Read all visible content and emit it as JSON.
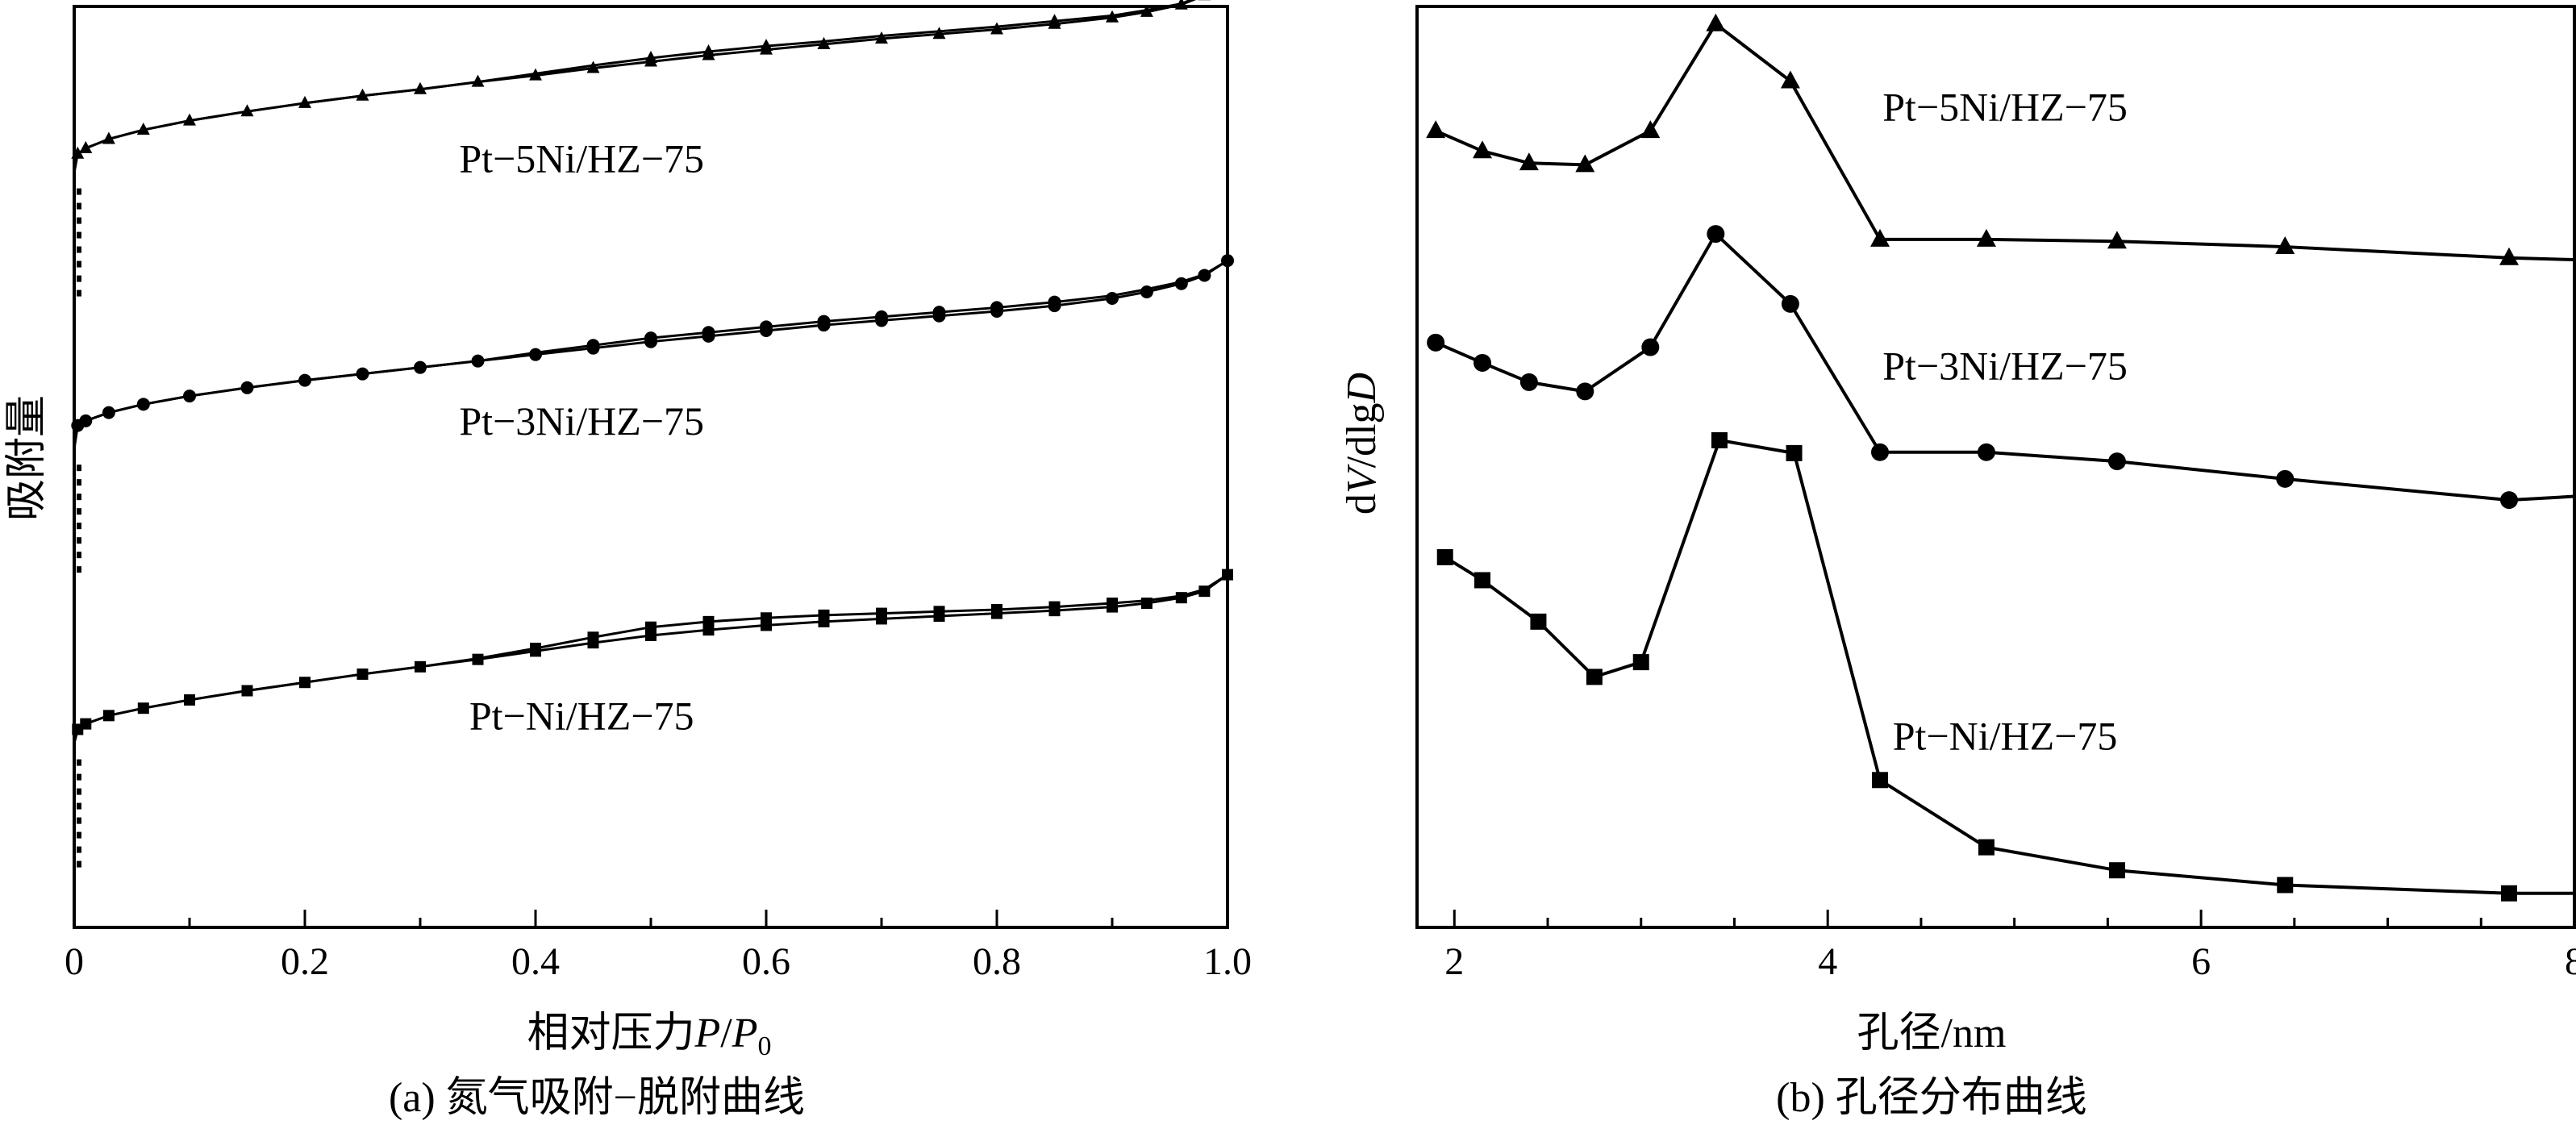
{
  "chart_data": [
    {
      "type": "line",
      "title": "",
      "caption": "(a) 氮气吸附−脱附曲线",
      "xlabel_prefix": "相对压力",
      "xlabel_var": "P",
      "xlabel_slash": "/",
      "xlabel_var2": "P",
      "xlabel_sub": "0",
      "ylabel": "吸附量",
      "xlim": [
        0,
        1.0
      ],
      "ylim": [
        0,
        100
      ],
      "xticks": [
        0,
        0.2,
        0.4,
        0.6,
        0.8,
        1.0
      ],
      "xtick_labels": [
        "0",
        "0.2",
        "0.4",
        "0.6",
        "0.8",
        "1.0"
      ],
      "series": [
        {
          "name": "Pt−5Ni/HZ−75",
          "marker": "triangle",
          "x": [
            0.0,
            0.003,
            0.01,
            0.03,
            0.06,
            0.1,
            0.15,
            0.2,
            0.25,
            0.3,
            0.35,
            0.4,
            0.45,
            0.5,
            0.55,
            0.6,
            0.65,
            0.7,
            0.75,
            0.8,
            0.85,
            0.9,
            0.93,
            0.96,
            0.98,
            1.0
          ],
          "y_adsorption": [
            82,
            84.0,
            84.6,
            85.6,
            86.6,
            87.6,
            88.6,
            89.5,
            90.3,
            91.0,
            91.8,
            92.5,
            93.3,
            94.0,
            94.7,
            95.3,
            95.9,
            96.5,
            97.0,
            97.5,
            98.1,
            98.8,
            99.4,
            100.2,
            101.2,
            102.6
          ],
          "y_desorption": [
            82,
            84.0,
            84.6,
            85.6,
            86.6,
            87.6,
            88.6,
            89.5,
            90.3,
            91.0,
            91.8,
            92.7,
            93.6,
            94.4,
            95.1,
            95.7,
            96.2,
            96.8,
            97.3,
            97.8,
            98.4,
            99.0,
            99.6,
            100.3,
            101.3,
            102.6
          ],
          "label_x": 0.44,
          "label_y": 82.0
        },
        {
          "name": "Pt−3Ni/HZ−75",
          "marker": "circle",
          "x": [
            0.0,
            0.003,
            0.01,
            0.03,
            0.06,
            0.1,
            0.15,
            0.2,
            0.25,
            0.3,
            0.35,
            0.4,
            0.45,
            0.5,
            0.55,
            0.6,
            0.65,
            0.7,
            0.75,
            0.8,
            0.85,
            0.9,
            0.93,
            0.96,
            0.98,
            1.0
          ],
          "y_adsorption": [
            52,
            54.5,
            55.0,
            55.9,
            56.8,
            57.7,
            58.6,
            59.4,
            60.1,
            60.8,
            61.5,
            62.2,
            62.9,
            63.6,
            64.2,
            64.8,
            65.4,
            65.9,
            66.4,
            66.9,
            67.5,
            68.3,
            69.0,
            69.9,
            70.8,
            72.4
          ],
          "y_desorption": [
            52,
            54.5,
            55.0,
            55.9,
            56.8,
            57.7,
            58.6,
            59.4,
            60.1,
            60.8,
            61.5,
            62.4,
            63.2,
            64.0,
            64.6,
            65.2,
            65.8,
            66.3,
            66.8,
            67.3,
            67.9,
            68.6,
            69.3,
            70.1,
            70.9,
            72.4
          ],
          "label_x": 0.44,
          "label_y": 53.5
        },
        {
          "name": "Pt−Ni/HZ−75",
          "marker": "square",
          "x": [
            0.0,
            0.003,
            0.01,
            0.03,
            0.06,
            0.1,
            0.15,
            0.2,
            0.25,
            0.3,
            0.35,
            0.4,
            0.45,
            0.5,
            0.55,
            0.6,
            0.65,
            0.7,
            0.75,
            0.8,
            0.85,
            0.9,
            0.93,
            0.96,
            0.98,
            1.0
          ],
          "y_adsorption": [
            20,
            21.5,
            22.1,
            23.0,
            23.8,
            24.7,
            25.7,
            26.6,
            27.5,
            28.3,
            29.1,
            30.0,
            30.9,
            31.7,
            32.3,
            32.8,
            33.2,
            33.5,
            33.8,
            34.1,
            34.4,
            34.8,
            35.2,
            35.8,
            36.5,
            38.3
          ],
          "y_desorption": [
            20,
            21.5,
            22.1,
            23.0,
            23.8,
            24.7,
            25.7,
            26.6,
            27.5,
            28.3,
            29.2,
            30.3,
            31.5,
            32.6,
            33.2,
            33.6,
            33.9,
            34.1,
            34.3,
            34.5,
            34.8,
            35.2,
            35.5,
            36.0,
            36.7,
            38.3
          ],
          "label_x": 0.44,
          "label_y": 21.5
        }
      ]
    },
    {
      "type": "line",
      "title": "",
      "caption": "(b) 孔径分布曲线",
      "xlabel": "孔径/nm",
      "ylabel_pre": "d",
      "ylabel_v": "V",
      "ylabel_mid": "/dlg",
      "ylabel_d": "D",
      "xlim": [
        1.8,
        8.0
      ],
      "ylim": [
        0,
        100
      ],
      "xticks": [
        2,
        4,
        6,
        8
      ],
      "xtick_labels": [
        "2",
        "4",
        "6",
        "8"
      ],
      "minor_xticks": [
        2.5,
        3,
        3.5,
        4.5,
        5,
        5.5,
        6.5,
        7,
        7.5
      ],
      "series": [
        {
          "name": "Pt−5Ni/HZ−75",
          "marker": "triangle",
          "x": [
            1.9,
            2.15,
            2.4,
            2.7,
            3.05,
            3.4,
            3.8,
            4.28,
            4.85,
            5.55,
            6.45,
            7.65,
            8.0
          ],
          "y": [
            86.5,
            84.3,
            83.0,
            82.8,
            86.5,
            98.1,
            91.9,
            74.7,
            74.7,
            74.5,
            73.9,
            72.7,
            72.5
          ],
          "show_marker": [
            true,
            true,
            true,
            true,
            true,
            true,
            true,
            true,
            true,
            true,
            true,
            true,
            false
          ],
          "label_x": 4.95,
          "label_y": 87.6
        },
        {
          "name": "Pt−3Ni/HZ−75",
          "marker": "circle",
          "x": [
            1.9,
            2.15,
            2.4,
            2.7,
            3.05,
            3.4,
            3.8,
            4.28,
            4.85,
            5.55,
            6.45,
            7.65,
            8.0
          ],
          "y": [
            63.5,
            61.3,
            59.2,
            58.2,
            63.0,
            75.3,
            67.7,
            51.6,
            51.6,
            50.6,
            48.7,
            46.4,
            46.8
          ],
          "show_marker": [
            true,
            true,
            true,
            true,
            true,
            true,
            true,
            true,
            true,
            true,
            true,
            true,
            false
          ],
          "label_x": 4.95,
          "label_y": 59.5
        },
        {
          "name": "Pt−Ni/HZ−75",
          "marker": "square",
          "x": [
            1.95,
            2.15,
            2.45,
            2.75,
            3.0,
            3.42,
            3.82,
            4.28,
            4.85,
            5.55,
            6.45,
            7.65,
            8.0
          ],
          "y": [
            40.2,
            37.7,
            33.2,
            27.2,
            28.8,
            52.9,
            51.5,
            16.0,
            8.7,
            6.2,
            4.6,
            3.7,
            3.7
          ],
          "show_marker": [
            true,
            true,
            true,
            true,
            true,
            true,
            true,
            true,
            true,
            true,
            true,
            true,
            false
          ],
          "label_x": 4.95,
          "label_y": 19.3
        }
      ]
    }
  ]
}
